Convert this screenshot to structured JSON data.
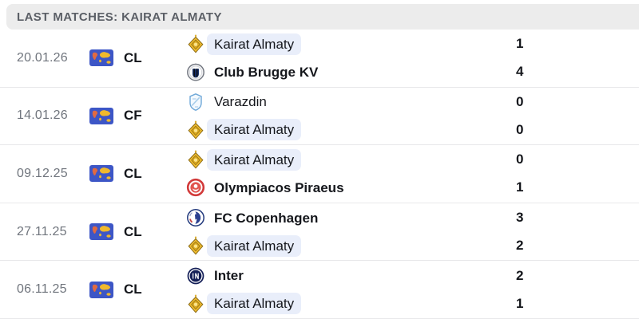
{
  "header": {
    "title": "LAST MATCHES: KAIRAT ALMATY"
  },
  "icons": {
    "competition_flag": "world-map-flag-icon",
    "team_logos": [
      "kairat-diamond",
      "club-brugge-crest",
      "varazdin-shield",
      "olympiacos-crest",
      "fc-copenhagen-crest",
      "inter-crest"
    ]
  },
  "colors": {
    "header_bg": "#ececec",
    "header_text": "#5b5f66",
    "highlight_bg": "#e9eefa",
    "date_text": "#70757d",
    "dark_text": "#15171c",
    "divider": "#e8e8ea",
    "flag_blue": "#3d56c6",
    "flag_gold": "#f0b92c",
    "kairat_gold": "#f0bc2e"
  },
  "matches": [
    {
      "date": "20.01.26",
      "competition": "CL",
      "home": {
        "name": "Kairat Almaty",
        "score": "1",
        "logo": "kairat",
        "highlighted": true
      },
      "away": {
        "name": "Club Brugge KV",
        "score": "4",
        "logo": "club-brugge",
        "highlighted": false
      }
    },
    {
      "date": "14.01.26",
      "competition": "CF",
      "home": {
        "name": "Varazdin",
        "score": "0",
        "logo": "varazdin",
        "highlighted": false
      },
      "away": {
        "name": "Kairat Almaty",
        "score": "0",
        "logo": "kairat",
        "highlighted": true
      }
    },
    {
      "date": "09.12.25",
      "competition": "CL",
      "home": {
        "name": "Kairat Almaty",
        "score": "0",
        "logo": "kairat",
        "highlighted": true
      },
      "away": {
        "name": "Olympiacos Piraeus",
        "score": "1",
        "logo": "olympiacos",
        "highlighted": false
      }
    },
    {
      "date": "27.11.25",
      "competition": "CL",
      "home": {
        "name": "FC Copenhagen",
        "score": "3",
        "logo": "fc-copenhagen",
        "highlighted": false
      },
      "away": {
        "name": "Kairat Almaty",
        "score": "2",
        "logo": "kairat",
        "highlighted": true
      }
    },
    {
      "date": "06.11.25",
      "competition": "CL",
      "home": {
        "name": "Inter",
        "score": "2",
        "logo": "inter",
        "highlighted": false
      },
      "away": {
        "name": "Kairat Almaty",
        "score": "1",
        "logo": "kairat",
        "highlighted": true
      }
    }
  ]
}
